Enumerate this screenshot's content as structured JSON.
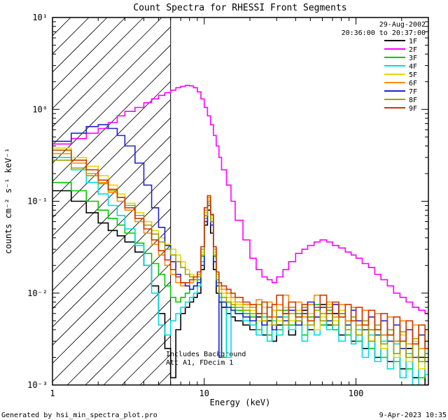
{
  "header": {
    "date": "29-Aug-2002",
    "time_range": "20:36:00 to 20:37:00"
  },
  "annotations": {
    "line1": "Includes Background",
    "line2": "Att A1, FDecim 1",
    "color": "#28286e"
  },
  "footer": {
    "left": "Generated by hsi_min_spectra_plot.pro",
    "right": "9-Apr-2023 10:35"
  },
  "chart_data": {
    "type": "line",
    "subtype": "step-histogram-loglog",
    "title": "Count Spectra for RHESSI Front Segments",
    "xlabel": "Energy (keV)",
    "ylabel": "counts cm⁻² s⁻¹ keV⁻¹",
    "xlim": [
      1,
      300
    ],
    "ylim": [
      0.001,
      10
    ],
    "grid": false,
    "legend_position": "top-right-inside",
    "hatch_region": {
      "x_from": 1,
      "x_to": 6,
      "style": "diagonal-lines"
    },
    "vline_x": 6,
    "x_ticks": [
      {
        "v": 1,
        "label": "1"
      },
      {
        "v": 10,
        "label": "10"
      },
      {
        "v": 100,
        "label": "100"
      }
    ],
    "y_ticks": [
      {
        "v": 10,
        "label": "10¹"
      },
      {
        "v": 1,
        "label": "10⁰"
      },
      {
        "v": 0.1,
        "label": "10⁻¹"
      },
      {
        "v": 0.01,
        "label": "10⁻²"
      },
      {
        "v": 0.001,
        "label": "10⁻³"
      }
    ],
    "bin_edges_kev": [
      1.0,
      1.33,
      1.67,
      2.0,
      2.33,
      2.67,
      3.0,
      3.5,
      4.0,
      4.5,
      5.0,
      5.5,
      6.0,
      6.5,
      7.0,
      7.5,
      8.0,
      8.5,
      9.0,
      9.5,
      10.0,
      10.5,
      11.0,
      11.5,
      12.0,
      12.5,
      13.0,
      14.0,
      15.0,
      16.0,
      18.0,
      20.0,
      22.0,
      24.0,
      26.0,
      28.0,
      30.0,
      33.0,
      36.0,
      40.0,
      44.0,
      48.0,
      53.0,
      58.0,
      64.0,
      70.0,
      77.0,
      85.0,
      93.0,
      100.0,
      110.0,
      121.0,
      133.0,
      146.0,
      161.0,
      177.0,
      195.0,
      214.0,
      236.0,
      259.0,
      285.0,
      314.0,
      345.0,
      380.0,
      400.0
    ],
    "series": [
      {
        "name": "1F",
        "color": "#000000",
        "values": [
          0.13,
          0.1,
          0.075,
          0.058,
          0.048,
          0.042,
          0.036,
          0.028,
          0.02,
          0.012,
          0.006,
          0.0025,
          0.0012,
          0.004,
          0.006,
          0.007,
          0.008,
          0.009,
          0.01,
          0.018,
          0.055,
          0.08,
          0.045,
          0.018,
          0.01,
          0.008,
          0.007,
          0.006,
          0.0055,
          0.005,
          0.0045,
          0.004,
          0.0055,
          0.0035,
          0.005,
          0.003,
          0.0045,
          0.006,
          0.0035,
          0.005,
          0.0065,
          0.004,
          0.0055,
          0.0075,
          0.0045,
          0.006,
          0.0035,
          0.005,
          0.003,
          0.0045,
          0.0025,
          0.004,
          0.002,
          0.0035,
          0.0018,
          0.003,
          0.0015,
          0.0025,
          0.0012,
          0.002,
          0.001,
          0.0018,
          0.0012,
          0.0015
        ]
      },
      {
        "name": "2F",
        "color": "#ff00ff",
        "values": [
          0.42,
          0.48,
          0.55,
          0.62,
          0.72,
          0.85,
          0.95,
          1.05,
          1.18,
          1.3,
          1.42,
          1.52,
          1.62,
          1.72,
          1.78,
          1.82,
          1.8,
          1.72,
          1.55,
          1.3,
          1.05,
          0.85,
          0.68,
          0.52,
          0.4,
          0.3,
          0.22,
          0.15,
          0.1,
          0.062,
          0.038,
          0.024,
          0.018,
          0.015,
          0.014,
          0.013,
          0.015,
          0.018,
          0.022,
          0.027,
          0.03,
          0.033,
          0.036,
          0.038,
          0.036,
          0.033,
          0.031,
          0.028,
          0.026,
          0.024,
          0.021,
          0.019,
          0.016,
          0.014,
          0.012,
          0.01,
          0.009,
          0.008,
          0.007,
          0.0065,
          0.006,
          0.0055,
          0.005,
          0.0048
        ]
      },
      {
        "name": "3F",
        "color": "#00c800",
        "values": [
          0.16,
          0.13,
          0.1,
          0.08,
          0.065,
          0.055,
          0.045,
          0.035,
          0.027,
          0.021,
          0.016,
          0.012,
          0.009,
          0.008,
          0.009,
          0.01,
          0.011,
          0.012,
          0.014,
          0.025,
          0.07,
          0.1,
          0.06,
          0.025,
          0.013,
          0.01,
          0.002,
          0.008,
          0.007,
          0.0065,
          0.006,
          0.0055,
          0.004,
          0.006,
          0.0035,
          0.0055,
          0.004,
          0.0065,
          0.0045,
          0.006,
          0.0035,
          0.0055,
          0.0075,
          0.0045,
          0.0065,
          0.004,
          0.0055,
          0.0035,
          0.005,
          0.003,
          0.0045,
          0.0025,
          0.004,
          0.002,
          0.0035,
          0.0018,
          0.003,
          0.0015,
          0.0028,
          0.0012,
          0.0022,
          0.001,
          0.002,
          0.0013
        ]
      },
      {
        "name": "4F",
        "color": "#00dcdc",
        "values": [
          0.3,
          0.22,
          0.16,
          0.12,
          0.09,
          0.07,
          0.05,
          0.033,
          0.02,
          0.01,
          0.0045,
          0.0035,
          0.005,
          0.006,
          0.007,
          0.008,
          0.009,
          0.01,
          0.012,
          0.022,
          0.065,
          0.095,
          0.055,
          0.022,
          0.012,
          0.009,
          0.008,
          0.002,
          0.0065,
          0.006,
          0.005,
          0.0045,
          0.0035,
          0.0055,
          0.003,
          0.005,
          0.0035,
          0.0055,
          0.004,
          0.0055,
          0.003,
          0.005,
          0.0035,
          0.006,
          0.004,
          0.0055,
          0.003,
          0.0045,
          0.0028,
          0.004,
          0.002,
          0.0035,
          0.0018,
          0.003,
          0.0015,
          0.0028,
          0.0012,
          0.0022,
          0.001,
          0.0018,
          0.0013,
          0.0022,
          0.001,
          0.0016
        ]
      },
      {
        "name": "5F",
        "color": "#e8d800",
        "values": [
          0.38,
          0.3,
          0.24,
          0.19,
          0.15,
          0.12,
          0.095,
          0.075,
          0.06,
          0.048,
          0.04,
          0.034,
          0.03,
          0.026,
          0.022,
          0.018,
          0.016,
          0.015,
          0.016,
          0.028,
          0.075,
          0.105,
          0.065,
          0.028,
          0.015,
          0.011,
          0.01,
          0.009,
          0.008,
          0.0075,
          0.007,
          0.0065,
          0.005,
          0.007,
          0.0045,
          0.0065,
          0.005,
          0.007,
          0.005,
          0.0065,
          0.0045,
          0.006,
          0.004,
          0.0055,
          0.0075,
          0.005,
          0.0065,
          0.004,
          0.0055,
          0.0035,
          0.005,
          0.003,
          0.0045,
          0.0025,
          0.004,
          0.002,
          0.0035,
          0.0018,
          0.003,
          0.0015,
          0.0025,
          0.0012,
          0.002,
          0.0014
        ]
      },
      {
        "name": "6F",
        "color": "#ff8c00",
        "values": [
          0.33,
          0.26,
          0.2,
          0.16,
          0.125,
          0.1,
          0.08,
          0.06,
          0.045,
          0.034,
          0.026,
          0.02,
          0.016,
          0.013,
          0.012,
          0.012,
          0.013,
          0.014,
          0.016,
          0.03,
          0.08,
          0.11,
          0.07,
          0.03,
          0.016,
          0.012,
          0.011,
          0.01,
          0.009,
          0.008,
          0.0075,
          0.007,
          0.0085,
          0.006,
          0.008,
          0.0055,
          0.0075,
          0.0095,
          0.006,
          0.008,
          0.0055,
          0.0075,
          0.0095,
          0.006,
          0.008,
          0.0055,
          0.0075,
          0.005,
          0.007,
          0.0045,
          0.0065,
          0.004,
          0.006,
          0.0035,
          0.0055,
          0.003,
          0.005,
          0.0028,
          0.0045,
          0.0025,
          0.004,
          0.0022,
          0.0035,
          0.002
        ]
      },
      {
        "name": "7F",
        "color": "#2222cc",
        "values": [
          0.45,
          0.55,
          0.65,
          0.68,
          0.62,
          0.52,
          0.4,
          0.26,
          0.15,
          0.085,
          0.052,
          0.033,
          0.022,
          0.016,
          0.013,
          0.012,
          0.011,
          0.012,
          0.013,
          0.02,
          0.06,
          0.09,
          0.055,
          0.022,
          0.012,
          0.002,
          0.008,
          0.007,
          0.0065,
          0.006,
          0.0055,
          0.005,
          0.006,
          0.0045,
          0.007,
          0.004,
          0.0055,
          0.005,
          0.0065,
          0.0045,
          0.006,
          0.008,
          0.0055,
          0.007,
          0.005,
          0.0075,
          0.006,
          0.0045,
          0.0065,
          0.005,
          0.004,
          0.0055,
          0.0035,
          0.005,
          0.003,
          0.0045,
          0.0025,
          0.004,
          0.002,
          0.0035,
          0.0018,
          0.003,
          0.0015,
          0.0025
        ]
      },
      {
        "name": "8F",
        "color": "#a0a000",
        "values": [
          0.28,
          0.23,
          0.19,
          0.155,
          0.13,
          0.11,
          0.09,
          0.07,
          0.055,
          0.044,
          0.036,
          0.03,
          0.026,
          0.022,
          0.019,
          0.016,
          0.015,
          0.014,
          0.015,
          0.026,
          0.07,
          0.1,
          0.06,
          0.026,
          0.014,
          0.01,
          0.009,
          0.008,
          0.0075,
          0.007,
          0.0065,
          0.006,
          0.0075,
          0.005,
          0.007,
          0.0045,
          0.0065,
          0.0045,
          0.007,
          0.005,
          0.007,
          0.0045,
          0.0065,
          0.005,
          0.007,
          0.0045,
          0.006,
          0.004,
          0.0055,
          0.0035,
          0.005,
          0.003,
          0.0045,
          0.0028,
          0.004,
          0.0022,
          0.0038,
          0.002,
          0.0032,
          0.0018,
          0.003,
          0.0015,
          0.0025,
          0.0012
        ]
      },
      {
        "name": "9F",
        "color": "#cd3700",
        "values": [
          0.36,
          0.28,
          0.22,
          0.17,
          0.135,
          0.11,
          0.085,
          0.065,
          0.05,
          0.038,
          0.029,
          0.023,
          0.018,
          0.015,
          0.013,
          0.013,
          0.014,
          0.015,
          0.017,
          0.032,
          0.085,
          0.115,
          0.072,
          0.032,
          0.017,
          0.013,
          0.012,
          0.011,
          0.01,
          0.009,
          0.008,
          0.0075,
          0.006,
          0.008,
          0.0055,
          0.0075,
          0.0095,
          0.006,
          0.008,
          0.0055,
          0.0075,
          0.005,
          0.007,
          0.0095,
          0.006,
          0.008,
          0.0055,
          0.0075,
          0.005,
          0.007,
          0.0045,
          0.0065,
          0.004,
          0.006,
          0.0035,
          0.0055,
          0.003,
          0.005,
          0.0028,
          0.0045,
          0.0025,
          0.004,
          0.0022,
          0.0018
        ]
      }
    ]
  }
}
